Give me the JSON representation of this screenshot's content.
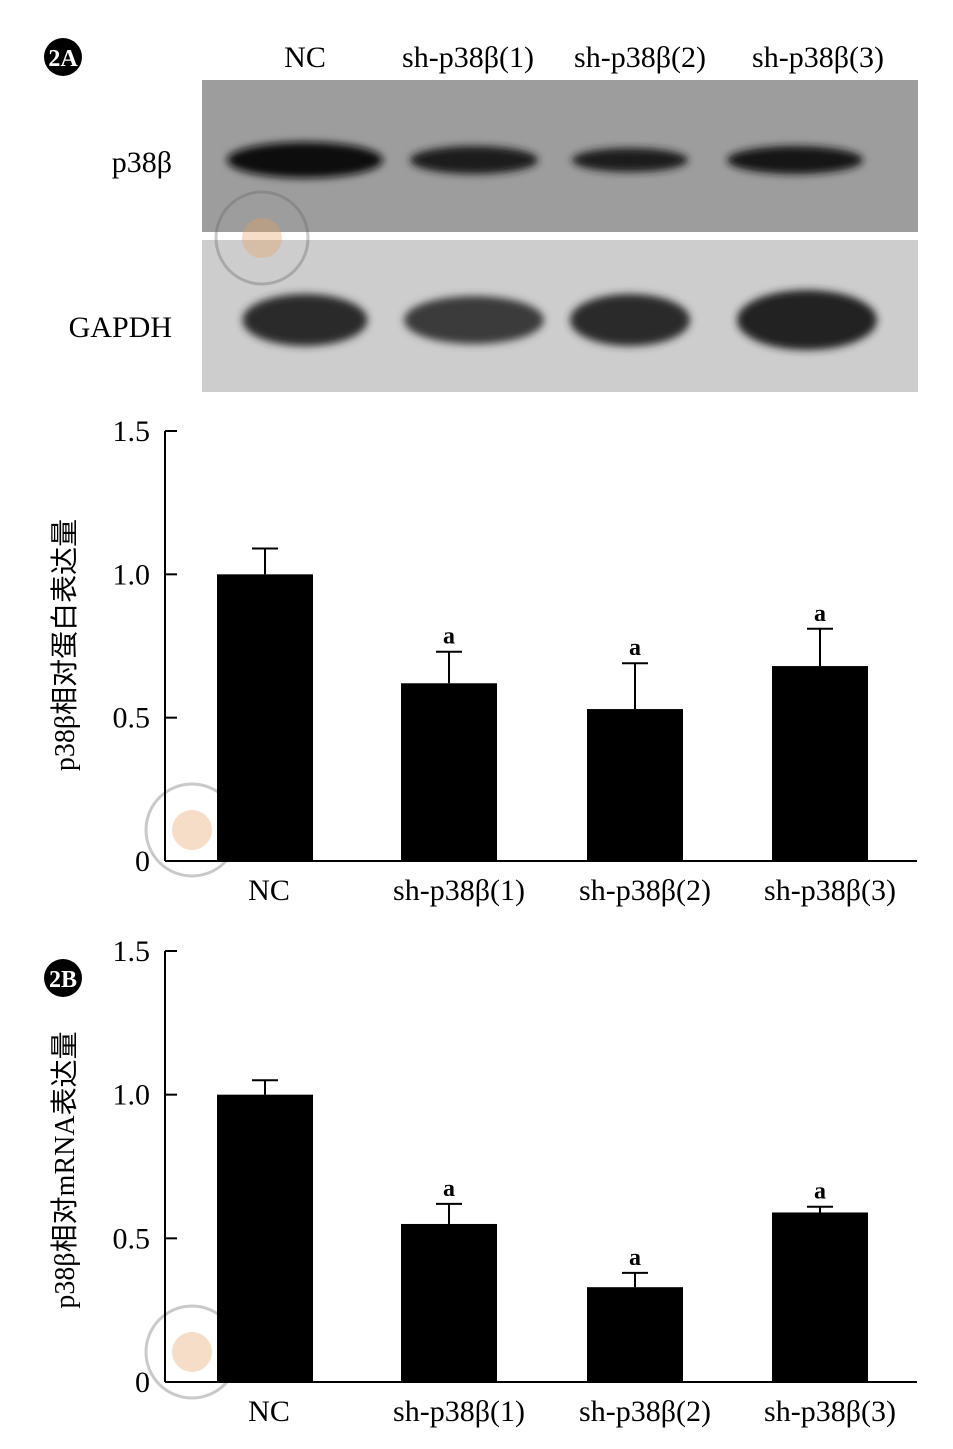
{
  "panel_a": {
    "label": "2A",
    "blot": {
      "lanes": [
        "NC",
        "sh-p38β(1)",
        "sh-p38β(2)",
        "sh-p38β(3)"
      ],
      "rows": [
        "p38β",
        "GAPDH"
      ]
    }
  },
  "panel_b": {
    "label": "2B"
  },
  "chart_data": [
    {
      "type": "bar",
      "categories": [
        "NC",
        "sh-p38β(1)",
        "sh-p38β(2)",
        "sh-p38β(3)"
      ],
      "values": [
        1.0,
        0.62,
        0.53,
        0.68
      ],
      "errors": [
        0.09,
        0.11,
        0.16,
        0.13
      ],
      "annotations": [
        "",
        "a",
        "a",
        "a"
      ],
      "ylabel": "p38β相对蛋白表达量",
      "ylim": [
        0,
        1.5
      ],
      "yticks": [
        "0",
        "0.5",
        "1.0",
        "1.5"
      ],
      "bar_color": "#000000",
      "grid": false
    },
    {
      "type": "bar",
      "categories": [
        "NC",
        "sh-p38β(1)",
        "sh-p38β(2)",
        "sh-p38β(3)"
      ],
      "values": [
        1.0,
        0.55,
        0.33,
        0.59
      ],
      "errors": [
        0.05,
        0.07,
        0.05,
        0.02
      ],
      "annotations": [
        "",
        "a",
        "a",
        "a"
      ],
      "ylabel": "p38β相对mRNA表达量",
      "ylim": [
        0,
        1.5
      ],
      "yticks": [
        "0",
        "0.5",
        "1.0",
        "1.5"
      ],
      "bar_color": "#000000",
      "grid": false
    }
  ]
}
